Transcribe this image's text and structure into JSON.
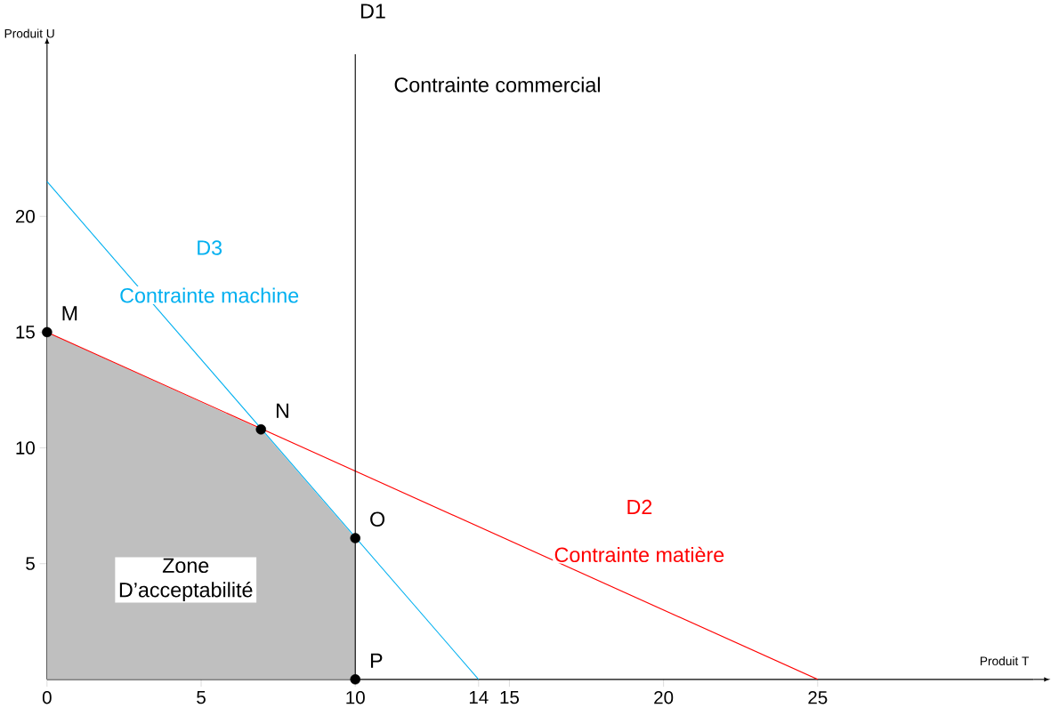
{
  "chart_data": {
    "type": "line",
    "xlabel": "Produit T",
    "ylabel": "Produit U",
    "xlim": [
      0,
      32
    ],
    "ylim": [
      0,
      27
    ],
    "xticks": [
      0,
      5,
      10,
      14,
      15,
      20,
      25
    ],
    "yticks": [
      5,
      10,
      15,
      20
    ],
    "line_style": "solid",
    "series": [
      {
        "type": "area",
        "color": "#bfbfbf",
        "x": [
          0,
          6.94,
          10,
          10
        ],
        "values": [
          15,
          10.8,
          6.1,
          0
        ]
      },
      {
        "name": "D2",
        "color": "#ff0000",
        "x": [
          0,
          25
        ],
        "values": [
          15,
          0
        ]
      },
      {
        "name": "D3",
        "color": "#00b0f0",
        "x": [
          0,
          14
        ],
        "values": [
          21.5,
          0
        ]
      },
      {
        "type": "scatter",
        "color": "#000000",
        "x": [
          0,
          6.94,
          10,
          10
        ],
        "values": [
          15,
          10.8,
          6.1,
          0
        ]
      }
    ],
    "ref_lines": [
      {
        "axis": "x",
        "value": 10,
        "label": "D1",
        "color": "#000000"
      }
    ],
    "annotations": [
      "Contrainte commercial",
      "Contrainte matière",
      "Contrainte machine",
      "Zone D’acceptabilité",
      {
        "text": "M",
        "x": 0,
        "y": 15
      },
      {
        "text": "N",
        "x": 6.94,
        "y": 10.8
      },
      {
        "text": "O",
        "x": 10,
        "y": 6.1
      },
      {
        "text": "P",
        "x": 10,
        "y": 0
      }
    ]
  }
}
